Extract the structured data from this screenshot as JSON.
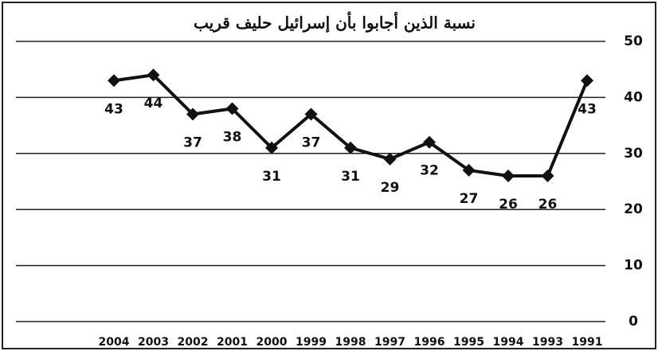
{
  "chart_data": {
    "type": "line",
    "title": "نسبة الذين أجابوا بأن إسرائيل حليف قريب",
    "categories": [
      "2004",
      "2003",
      "2002",
      "2001",
      "2000",
      "1999",
      "1998",
      "1997",
      "1996",
      "1995",
      "1994",
      "1993",
      "1991"
    ],
    "values": [
      43,
      44,
      37,
      38,
      31,
      37,
      31,
      29,
      32,
      27,
      26,
      26,
      43
    ],
    "color": "#111111",
    "ylim": [
      0,
      50
    ],
    "yticks": [
      0,
      10,
      20,
      30,
      40,
      50
    ],
    "grid": true,
    "y_axis_side": "right"
  }
}
